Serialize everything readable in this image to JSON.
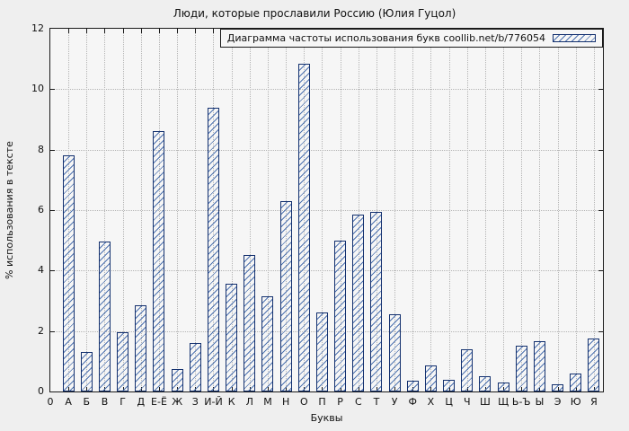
{
  "chart_data": {
    "type": "bar",
    "title": "Люди, которые прославили Россию (Юлия Гуцол)",
    "legend": "Диаграмма частоты использования букв coollib.net/b/776054",
    "legend_position": "top-right",
    "xlabel": "Буквы",
    "ylabel": "% использования в тексте",
    "xlim": [
      0,
      30.5
    ],
    "ylim": [
      0,
      12
    ],
    "yticks": [
      0,
      2,
      4,
      6,
      8,
      10,
      12
    ],
    "grid": true,
    "categories": [
      "0",
      "А",
      "Б",
      "В",
      "Г",
      "Д",
      "Е-Ё",
      "Ж",
      "З",
      "И-Й",
      "К",
      "Л",
      "М",
      "Н",
      "О",
      "П",
      "Р",
      "С",
      "Т",
      "У",
      "Ф",
      "Х",
      "Ц",
      "Ч",
      "Ш",
      "Щ",
      "Ь-Ъ",
      "Ы",
      "Э",
      "Ю",
      "Я"
    ],
    "values": [
      null,
      7.8,
      1.3,
      4.95,
      1.95,
      2.85,
      8.6,
      0.75,
      1.6,
      9.4,
      3.55,
      4.5,
      3.15,
      6.3,
      10.85,
      2.6,
      5.0,
      5.85,
      5.95,
      2.55,
      0.35,
      0.85,
      0.4,
      1.4,
      0.5,
      0.3,
      1.5,
      1.65,
      0.25,
      0.6,
      1.75
    ],
    "colors": {
      "bar_outline": "#13306e",
      "bar_hatch": "#4f74b0",
      "grid": "#b4b4b4",
      "axis": "#1a1a1a",
      "plot_background": "#f6f6f6",
      "page_background": "#efefef"
    }
  }
}
